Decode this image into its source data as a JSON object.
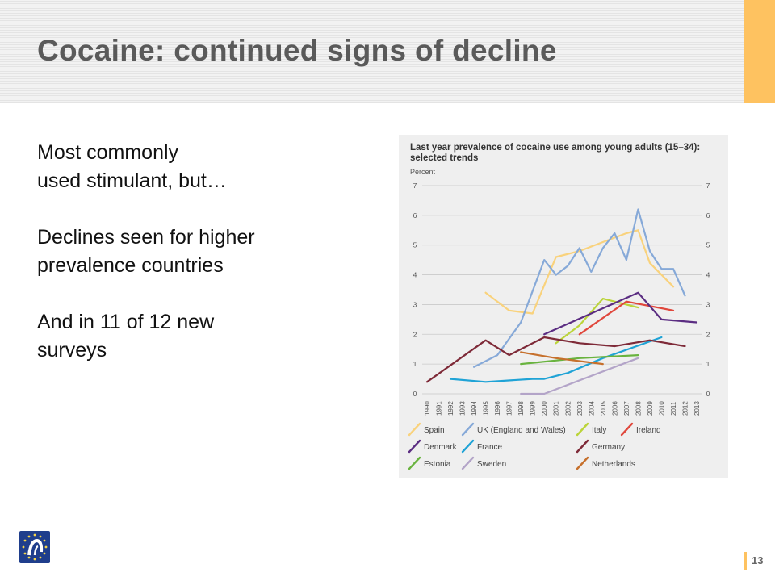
{
  "slide": {
    "title": "Cocaine: continued signs of decline",
    "page_number": "13",
    "bullets": [
      "Most commonly\nused stimulant, but…",
      "Declines seen for higher\nprevalence countries",
      "And in 11 of 12 new\nsurveys"
    ]
  },
  "colors": {
    "accent": "#fec260",
    "title_text": "#5a5a5a",
    "logo_blue": "#1f3e8c"
  },
  "chart_data": {
    "type": "line",
    "title": "Last year prevalence of cocaine use among young adults (15–34): selected trends",
    "ylabel": "Percent",
    "xlabel": "",
    "x": [
      "1990",
      "1991",
      "1992",
      "1993",
      "1994",
      "1995",
      "1996",
      "1997",
      "1998",
      "1999",
      "2000",
      "2001",
      "2002",
      "2003",
      "2004",
      "2005",
      "2006",
      "2007",
      "2008",
      "2009",
      "2010",
      "2011",
      "2012",
      "2013"
    ],
    "ylim": [
      0,
      7
    ],
    "yticks": [
      "0",
      "1",
      "2",
      "3",
      "4",
      "5",
      "6",
      "7"
    ],
    "grid": true,
    "legend_position": "bottom",
    "series": [
      {
        "name": "Spain",
        "color": "#f9d27c",
        "points": [
          [
            1995,
            3.4
          ],
          [
            1997,
            2.8
          ],
          [
            1999,
            2.7
          ],
          [
            2001,
            4.6
          ],
          [
            2003,
            4.8
          ],
          [
            2005,
            5.1
          ],
          [
            2007,
            5.4
          ],
          [
            2008,
            5.5
          ],
          [
            2009,
            4.4
          ],
          [
            2011,
            3.6
          ]
        ]
      },
      {
        "name": "UK (England and Wales)",
        "color": "#86a9d8",
        "points": [
          [
            1994,
            0.9
          ],
          [
            1996,
            1.3
          ],
          [
            1998,
            2.4
          ],
          [
            2000,
            4.5
          ],
          [
            2001,
            4.0
          ],
          [
            2002,
            4.3
          ],
          [
            2003,
            4.9
          ],
          [
            2004,
            4.1
          ],
          [
            2005,
            4.9
          ],
          [
            2006,
            5.4
          ],
          [
            2007,
            4.5
          ],
          [
            2008,
            6.2
          ],
          [
            2009,
            4.8
          ],
          [
            2010,
            4.2
          ],
          [
            2011,
            4.2
          ],
          [
            2012,
            3.3
          ]
        ]
      },
      {
        "name": "Italy",
        "color": "#bbd43a",
        "points": [
          [
            2001,
            1.7
          ],
          [
            2003,
            2.3
          ],
          [
            2005,
            3.2
          ],
          [
            2007,
            3.0
          ],
          [
            2008,
            2.9
          ]
        ]
      },
      {
        "name": "Ireland",
        "color": "#e0473c",
        "points": [
          [
            2003,
            2.0
          ],
          [
            2007,
            3.1
          ],
          [
            2011,
            2.8
          ]
        ]
      },
      {
        "name": "Denmark",
        "color": "#5b2d82",
        "points": [
          [
            2000,
            2.0
          ],
          [
            2008,
            3.4
          ],
          [
            2010,
            2.5
          ],
          [
            2013,
            2.4
          ]
        ]
      },
      {
        "name": "France",
        "color": "#1fa3d6",
        "points": [
          [
            1992,
            0.5
          ],
          [
            1995,
            0.4
          ],
          [
            1999,
            0.5
          ],
          [
            2000,
            0.5
          ],
          [
            2002,
            0.7
          ],
          [
            2005,
            1.2
          ],
          [
            2010,
            1.9
          ]
        ]
      },
      {
        "name": "Germany",
        "color": "#7e2a38",
        "points": [
          [
            1990,
            0.4
          ],
          [
            1995,
            1.8
          ],
          [
            1997,
            1.3
          ],
          [
            2000,
            1.9
          ],
          [
            2003,
            1.7
          ],
          [
            2006,
            1.6
          ],
          [
            2009,
            1.8
          ],
          [
            2012,
            1.6
          ]
        ]
      },
      {
        "name": "Estonia",
        "color": "#69b33f",
        "points": [
          [
            1998,
            1.0
          ],
          [
            2003,
            1.2
          ],
          [
            2008,
            1.3
          ]
        ]
      },
      {
        "name": "Sweden",
        "color": "#b3a4c8",
        "points": [
          [
            1998,
            0.0
          ],
          [
            2000,
            0.0
          ],
          [
            2008,
            1.2
          ]
        ]
      },
      {
        "name": "Netherlands",
        "color": "#c6702c",
        "points": [
          [
            1998,
            1.4
          ],
          [
            2001,
            1.2
          ],
          [
            2005,
            1.0
          ]
        ]
      }
    ]
  }
}
